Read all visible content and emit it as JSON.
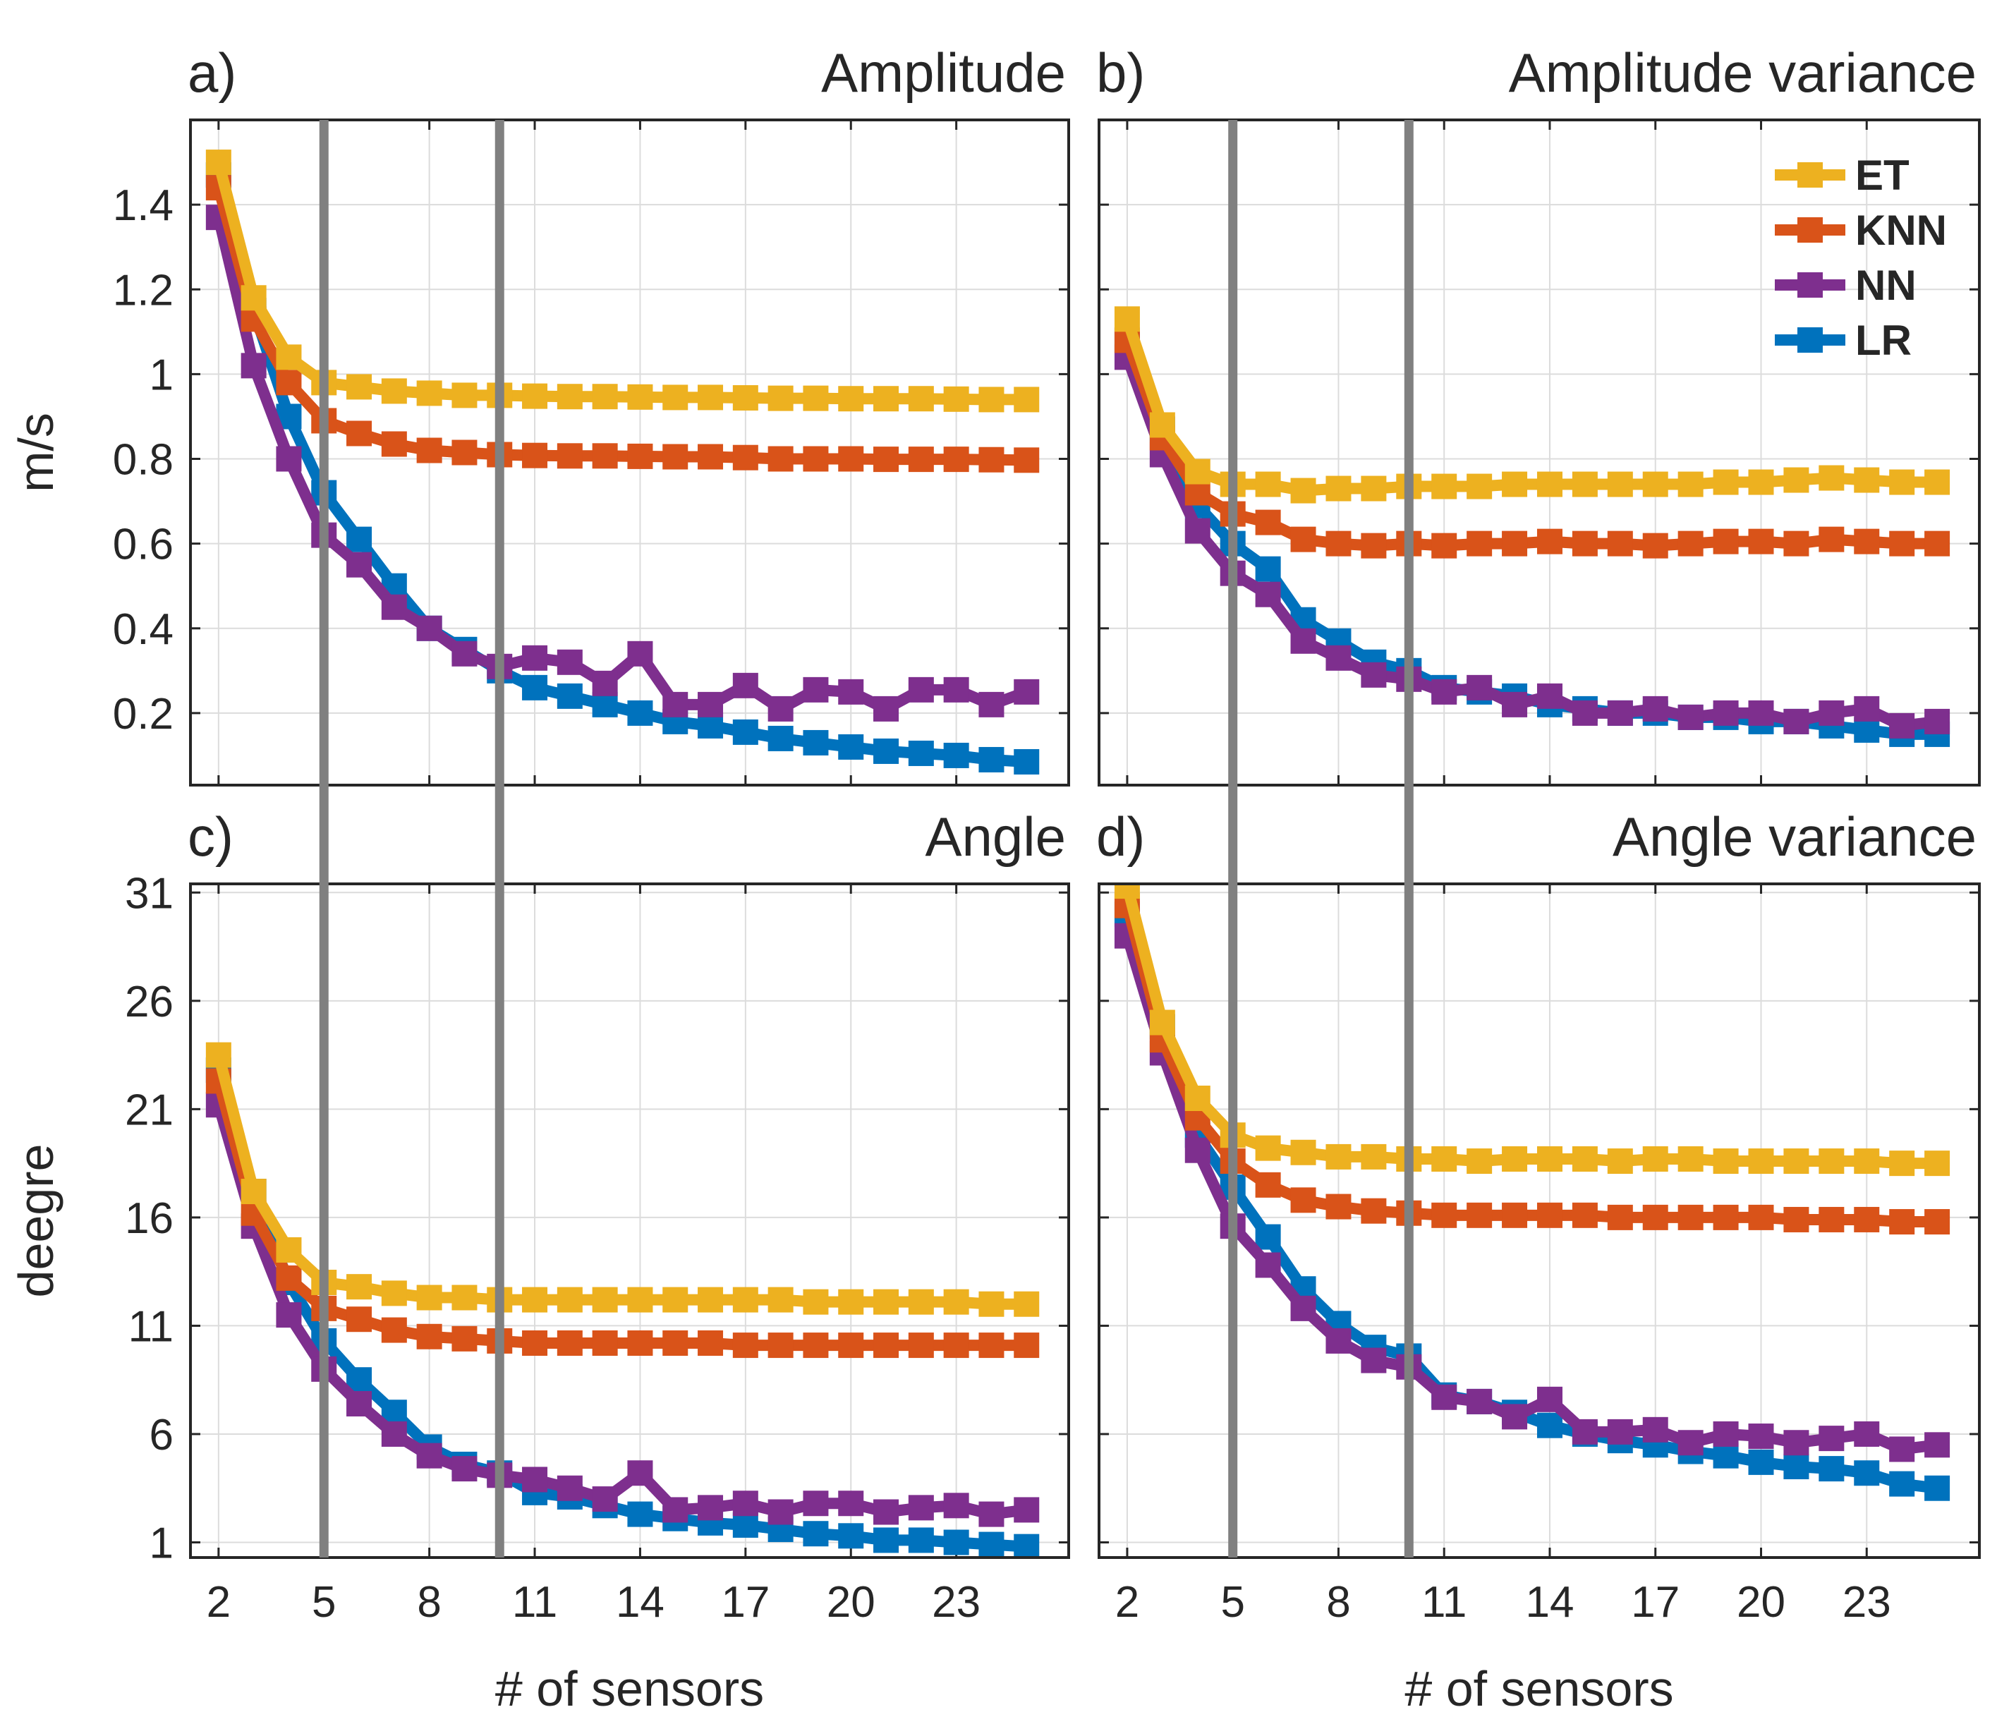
{
  "chart_data": [
    {
      "id": "a",
      "type": "line",
      "panel_label": "a)",
      "title": "Amplitude",
      "xlabel": "",
      "ylabel": "m/s",
      "x": [
        2,
        3,
        4,
        5,
        6,
        7,
        8,
        9,
        10,
        11,
        12,
        13,
        14,
        15,
        16,
        17,
        18,
        19,
        20,
        21,
        22,
        23,
        24,
        25
      ],
      "xlim": [
        1.2,
        26.2
      ],
      "xticks": [
        2,
        5,
        8,
        11,
        14,
        17,
        20,
        23
      ],
      "xticklabels": [],
      "ylim": [
        0.03,
        1.6
      ],
      "yticks": [
        0.2,
        0.4,
        0.6,
        0.8,
        1.0,
        1.2,
        1.4
      ],
      "yticklabels": [
        "0.2",
        "0.4",
        "0.6",
        "0.8",
        "1",
        "1.2",
        "1.4"
      ],
      "grid": true,
      "vlines": [
        5,
        10
      ],
      "legend": false,
      "series": [
        {
          "name": "ET",
          "values": [
            1.5,
            1.18,
            1.04,
            0.98,
            0.97,
            0.96,
            0.955,
            0.95,
            0.95,
            0.948,
            0.947,
            0.947,
            0.946,
            0.945,
            0.945,
            0.944,
            0.943,
            0.943,
            0.942,
            0.942,
            0.942,
            0.941,
            0.94,
            0.94
          ]
        },
        {
          "name": "KNN",
          "values": [
            1.44,
            1.13,
            0.98,
            0.89,
            0.86,
            0.835,
            0.82,
            0.815,
            0.81,
            0.808,
            0.807,
            0.807,
            0.806,
            0.805,
            0.805,
            0.803,
            0.8,
            0.8,
            0.8,
            0.799,
            0.799,
            0.799,
            0.798,
            0.797
          ]
        },
        {
          "name": "NN",
          "values": [
            1.37,
            1.02,
            0.8,
            0.62,
            0.55,
            0.45,
            0.4,
            0.34,
            0.31,
            0.33,
            0.32,
            0.27,
            0.34,
            0.22,
            0.22,
            0.265,
            0.21,
            0.255,
            0.25,
            0.21,
            0.255,
            0.255,
            0.22,
            0.25
          ]
        },
        {
          "name": "LR",
          "values": [
            1.47,
            1.15,
            0.9,
            0.72,
            0.61,
            0.5,
            0.4,
            0.35,
            0.3,
            0.26,
            0.24,
            0.22,
            0.2,
            0.18,
            0.17,
            0.155,
            0.14,
            0.13,
            0.12,
            0.11,
            0.105,
            0.1,
            0.09,
            0.085
          ]
        }
      ]
    },
    {
      "id": "b",
      "type": "line",
      "panel_label": "b)",
      "title": "Amplitude variance",
      "xlabel": "",
      "ylabel": "",
      "x": [
        2,
        3,
        4,
        5,
        6,
        7,
        8,
        9,
        10,
        11,
        12,
        13,
        14,
        15,
        16,
        17,
        18,
        19,
        20,
        21,
        22,
        23,
        24,
        25
      ],
      "xlim": [
        1.2,
        26.2
      ],
      "xticks": [
        2,
        5,
        8,
        11,
        14,
        17,
        20,
        23
      ],
      "xticklabels": [],
      "ylim": [
        0.03,
        1.6
      ],
      "yticks": [
        0.2,
        0.4,
        0.6,
        0.8,
        1.0,
        1.2,
        1.4
      ],
      "yticklabels": [],
      "grid": true,
      "vlines": [
        5,
        10
      ],
      "legend": true,
      "legend_position": "top-right",
      "series": [
        {
          "name": "ET",
          "values": [
            1.13,
            0.88,
            0.77,
            0.74,
            0.74,
            0.725,
            0.73,
            0.73,
            0.735,
            0.735,
            0.735,
            0.74,
            0.74,
            0.74,
            0.74,
            0.74,
            0.74,
            0.745,
            0.745,
            0.75,
            0.755,
            0.75,
            0.745,
            0.745
          ]
        },
        {
          "name": "KNN",
          "values": [
            1.08,
            0.85,
            0.72,
            0.67,
            0.65,
            0.61,
            0.6,
            0.595,
            0.6,
            0.595,
            0.6,
            0.6,
            0.605,
            0.6,
            0.6,
            0.595,
            0.6,
            0.605,
            0.605,
            0.6,
            0.61,
            0.605,
            0.6,
            0.6
          ]
        },
        {
          "name": "NN",
          "values": [
            1.04,
            0.81,
            0.63,
            0.53,
            0.48,
            0.37,
            0.33,
            0.29,
            0.28,
            0.25,
            0.26,
            0.22,
            0.24,
            0.2,
            0.2,
            0.21,
            0.19,
            0.2,
            0.2,
            0.18,
            0.2,
            0.21,
            0.17,
            0.18
          ]
        },
        {
          "name": "LR",
          "values": [
            1.08,
            0.87,
            0.69,
            0.6,
            0.54,
            0.42,
            0.37,
            0.32,
            0.3,
            0.26,
            0.25,
            0.24,
            0.22,
            0.21,
            0.2,
            0.2,
            0.19,
            0.19,
            0.18,
            0.18,
            0.17,
            0.16,
            0.15,
            0.15
          ]
        }
      ]
    },
    {
      "id": "c",
      "type": "line",
      "panel_label": "c)",
      "title": "Angle",
      "xlabel": "# of sensors",
      "ylabel": "deegre",
      "x": [
        2,
        3,
        4,
        5,
        6,
        7,
        8,
        9,
        10,
        11,
        12,
        13,
        14,
        15,
        16,
        17,
        18,
        19,
        20,
        21,
        22,
        23,
        24,
        25
      ],
      "xlim": [
        1.2,
        26.2
      ],
      "xticks": [
        2,
        5,
        8,
        11,
        14,
        17,
        20,
        23
      ],
      "xticklabels": [
        "2",
        "5",
        "8",
        "11",
        "14",
        "17",
        "20",
        "23"
      ],
      "ylim": [
        0.3,
        31.4
      ],
      "yticks": [
        1,
        6,
        11,
        16,
        21,
        26,
        31
      ],
      "yticklabels": [
        "1",
        "6",
        "11",
        "16",
        "21",
        "26",
        "31"
      ],
      "grid": true,
      "vlines": [
        5,
        10
      ],
      "legend": false,
      "series": [
        {
          "name": "ET",
          "values": [
            23.5,
            17.2,
            14.5,
            13.0,
            12.8,
            12.5,
            12.3,
            12.3,
            12.2,
            12.2,
            12.2,
            12.2,
            12.2,
            12.2,
            12.2,
            12.2,
            12.2,
            12.1,
            12.1,
            12.1,
            12.1,
            12.1,
            12.0,
            12.0
          ]
        },
        {
          "name": "KNN",
          "values": [
            22.3,
            16.2,
            13.2,
            11.8,
            11.3,
            10.8,
            10.5,
            10.4,
            10.3,
            10.2,
            10.2,
            10.2,
            10.2,
            10.2,
            10.2,
            10.1,
            10.1,
            10.1,
            10.1,
            10.1,
            10.1,
            10.1,
            10.1,
            10.1
          ]
        },
        {
          "name": "NN",
          "values": [
            21.2,
            15.6,
            11.5,
            9.0,
            7.4,
            6.0,
            5.0,
            4.4,
            4.1,
            3.9,
            3.5,
            3.0,
            4.2,
            2.5,
            2.6,
            2.8,
            2.4,
            2.8,
            2.8,
            2.4,
            2.6,
            2.7,
            2.3,
            2.5
          ]
        },
        {
          "name": "LR",
          "values": [
            22.8,
            17.2,
            13.0,
            10.3,
            8.5,
            7.0,
            5.4,
            4.6,
            4.2,
            3.3,
            3.1,
            2.7,
            2.3,
            2.1,
            1.9,
            1.8,
            1.6,
            1.4,
            1.3,
            1.1,
            1.1,
            1.0,
            0.9,
            0.8
          ]
        }
      ]
    },
    {
      "id": "d",
      "type": "line",
      "panel_label": "d)",
      "title": "Angle variance",
      "xlabel": "# of sensors",
      "ylabel": "",
      "x": [
        2,
        3,
        4,
        5,
        6,
        7,
        8,
        9,
        10,
        11,
        12,
        13,
        14,
        15,
        16,
        17,
        18,
        19,
        20,
        21,
        22,
        23,
        24,
        25
      ],
      "xlim": [
        1.2,
        26.2
      ],
      "xticks": [
        2,
        5,
        8,
        11,
        14,
        17,
        20,
        23
      ],
      "xticklabels": [
        "2",
        "5",
        "8",
        "11",
        "14",
        "17",
        "20",
        "23"
      ],
      "ylim": [
        0.3,
        31.4
      ],
      "yticks": [
        1,
        6,
        11,
        16,
        21,
        26,
        31
      ],
      "yticklabels": [],
      "grid": true,
      "vlines": [
        5,
        10
      ],
      "legend": false,
      "series": [
        {
          "name": "ET",
          "values": [
            31.3,
            25.0,
            21.5,
            19.8,
            19.2,
            19.0,
            18.8,
            18.8,
            18.7,
            18.7,
            18.6,
            18.7,
            18.7,
            18.7,
            18.6,
            18.7,
            18.7,
            18.6,
            18.6,
            18.6,
            18.6,
            18.6,
            18.5,
            18.5
          ]
        },
        {
          "name": "KNN",
          "values": [
            30.4,
            24.2,
            20.6,
            18.6,
            17.5,
            16.8,
            16.5,
            16.3,
            16.2,
            16.1,
            16.1,
            16.1,
            16.1,
            16.1,
            16.0,
            16.0,
            16.0,
            16.0,
            16.0,
            15.9,
            15.9,
            15.9,
            15.8,
            15.8
          ]
        },
        {
          "name": "NN",
          "values": [
            29.0,
            23.6,
            19.1,
            15.6,
            13.8,
            11.8,
            10.3,
            9.4,
            9.1,
            7.7,
            7.5,
            6.8,
            7.6,
            6.1,
            6.1,
            6.2,
            5.6,
            6.0,
            5.9,
            5.6,
            5.8,
            6.0,
            5.3,
            5.5
          ]
        },
        {
          "name": "LR",
          "values": [
            30.0,
            24.8,
            19.8,
            17.4,
            15.1,
            12.7,
            11.1,
            10.0,
            9.6,
            7.8,
            7.5,
            7.0,
            6.4,
            6.0,
            5.7,
            5.5,
            5.2,
            5.0,
            4.7,
            4.5,
            4.4,
            4.2,
            3.7,
            3.5
          ]
        }
      ]
    }
  ],
  "colors": {
    "ET": "#EDB120",
    "KNN": "#D95319",
    "NN": "#7E2F8E",
    "LR": "#0072BD",
    "vline": "#808080",
    "grid": "#dcdcdc",
    "axes": "#262626"
  }
}
